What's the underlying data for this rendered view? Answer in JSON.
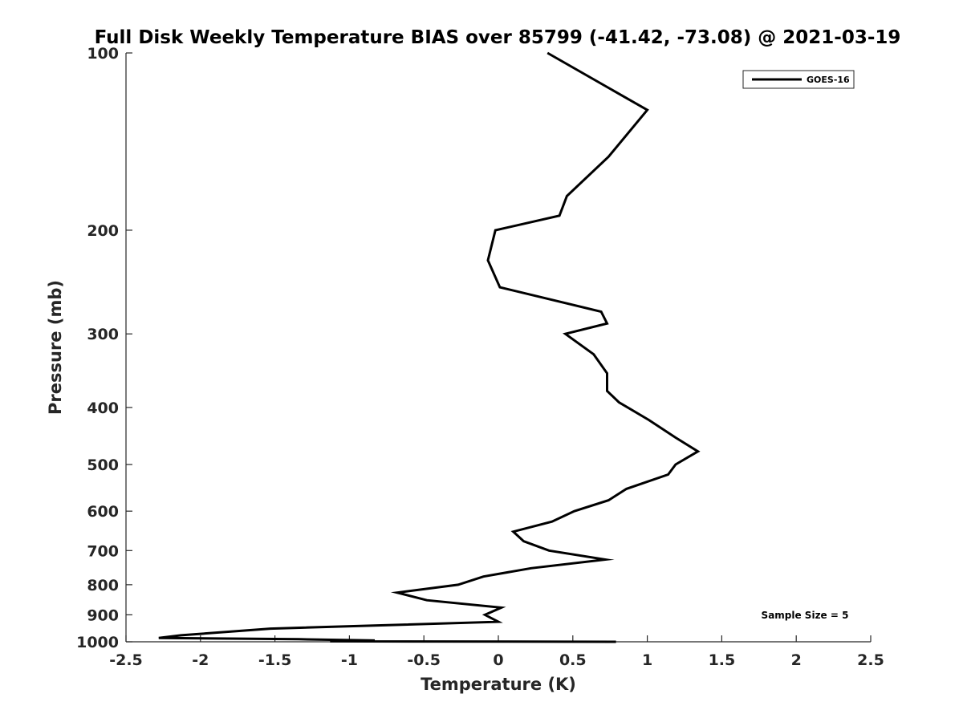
{
  "chart_data": {
    "type": "line",
    "title": "Full Disk Weekly Temperature BIAS over 85799 (-41.42, -73.08) @ 2021-03-19",
    "xlabel": "Temperature (K)",
    "ylabel": "Pressure (mb)",
    "xlim": [
      -2.5,
      2.5
    ],
    "ylim": [
      100,
      1000
    ],
    "y_scale": "log",
    "y_reversed": true,
    "grid": false,
    "legend_position": "top-right",
    "x_ticks": [
      -2.5,
      -2,
      -1.5,
      -1,
      -0.5,
      0,
      0.5,
      1,
      1.5,
      2,
      2.5
    ],
    "x_tick_labels": [
      "-2.5",
      "-2",
      "-1.5",
      "-1",
      "-0.5",
      "0",
      "0.5",
      "1",
      "1.5",
      "2",
      "2.5"
    ],
    "y_ticks": [
      100,
      200,
      300,
      400,
      500,
      600,
      700,
      800,
      900,
      1000
    ],
    "y_tick_labels": [
      "100",
      "200",
      "300",
      "400",
      "500",
      "600",
      "700",
      "800",
      "900",
      "1000"
    ],
    "series": [
      {
        "name": "GOES-16",
        "color": "#000000",
        "points": [
          {
            "x": 0.33,
            "p": 100
          },
          {
            "x": 1.0,
            "p": 125
          },
          {
            "x": 0.74,
            "p": 150
          },
          {
            "x": 0.46,
            "p": 175
          },
          {
            "x": 0.41,
            "p": 189
          },
          {
            "x": -0.02,
            "p": 200
          },
          {
            "x": -0.07,
            "p": 225
          },
          {
            "x": 0.01,
            "p": 250
          },
          {
            "x": 0.69,
            "p": 275
          },
          {
            "x": 0.73,
            "p": 288
          },
          {
            "x": 0.45,
            "p": 300
          },
          {
            "x": 0.64,
            "p": 325
          },
          {
            "x": 0.73,
            "p": 350
          },
          {
            "x": 0.73,
            "p": 375
          },
          {
            "x": 0.81,
            "p": 392
          },
          {
            "x": 1.01,
            "p": 420
          },
          {
            "x": 1.19,
            "p": 450
          },
          {
            "x": 1.34,
            "p": 475
          },
          {
            "x": 1.19,
            "p": 500
          },
          {
            "x": 1.14,
            "p": 520
          },
          {
            "x": 0.86,
            "p": 550
          },
          {
            "x": 0.74,
            "p": 575
          },
          {
            "x": 0.51,
            "p": 600
          },
          {
            "x": 0.36,
            "p": 625
          },
          {
            "x": 0.1,
            "p": 650
          },
          {
            "x": 0.17,
            "p": 675
          },
          {
            "x": 0.34,
            "p": 700
          },
          {
            "x": 0.72,
            "p": 725
          },
          {
            "x": 0.22,
            "p": 750
          },
          {
            "x": -0.1,
            "p": 775
          },
          {
            "x": -0.27,
            "p": 800
          },
          {
            "x": -0.68,
            "p": 825
          },
          {
            "x": -0.48,
            "p": 850
          },
          {
            "x": 0.02,
            "p": 875
          },
          {
            "x": -0.09,
            "p": 900
          },
          {
            "x": 0.0,
            "p": 925
          },
          {
            "x": -1.53,
            "p": 950
          },
          {
            "x": -2.13,
            "p": 975
          },
          {
            "x": -2.28,
            "p": 985
          },
          {
            "x": -1.34,
            "p": 990
          },
          {
            "x": -0.83,
            "p": 995
          },
          {
            "x": -1.13,
            "p": 998
          },
          {
            "x": 0.79,
            "p": 1000
          }
        ]
      }
    ],
    "annotation": "Sample Size = 5"
  }
}
